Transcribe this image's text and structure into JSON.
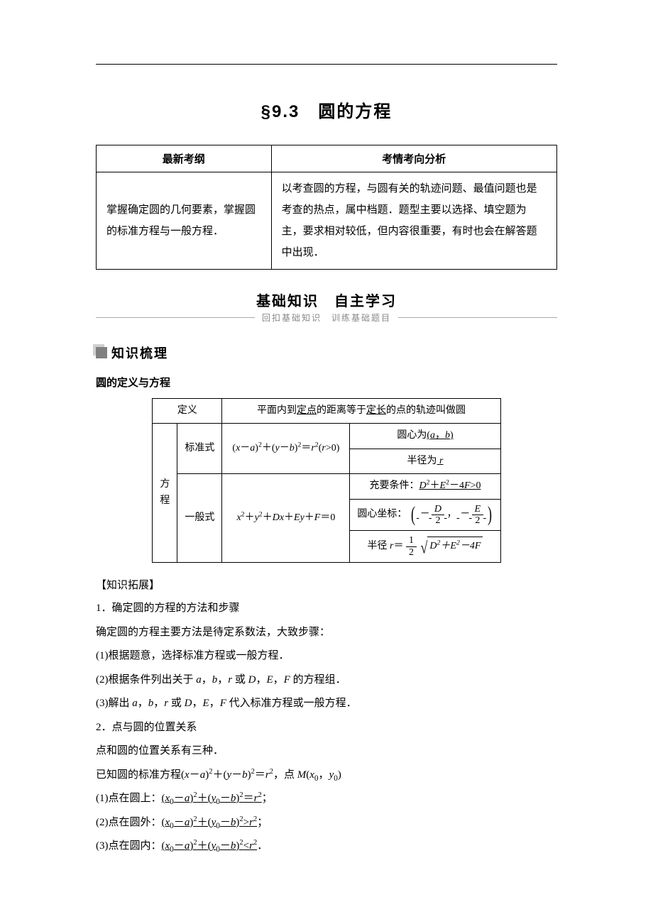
{
  "title": "§9.3　圆的方程",
  "outline": {
    "head_left": "最新考纲",
    "head_right": "考情考向分析",
    "left": "掌握确定圆的几何要素，掌握圆的标准方程与一般方程．",
    "right": "以考查圆的方程，与圆有关的轨迹问题、最值问题也是考查的热点，属中档题．题型主要以选择、填空题为主，要求相对较低，但内容很重要，有时也会在解答题中出现．"
  },
  "banner": {
    "main": "基础知识　自主学习",
    "sub": "回扣基础知识　训练基础题目"
  },
  "block1_label": "知识梳理",
  "defn_caption": "圆的定义与方程",
  "def_table": {
    "r1c1": "定义",
    "r1c2": "平面内到<span class=\"ul\">定点</span>的距离等于<span class=\"ul\">定长</span>的点的轨迹叫做圆",
    "c1": "方程",
    "r2a": "标准式",
    "std_eq": "(<span class=\"it\">x</span>－<span class=\"it\">a</span>)<sup>2</sup>＋(<span class=\"it\">y</span>－<span class=\"it\">b</span>)<sup>2</sup>＝<span class=\"it\">r</span><sup>2</sup>(<span class=\"it\">r</span>&gt;0)",
    "center": "圆心为<span class=\"ul\">(<span class=\"it\">a</span>，<span class=\"it\">b</span>)</span>",
    "radius": "半径为<span class=\"ul\"> <span class=\"it\">r</span> </span>",
    "r3a": "一般式",
    "gen_eq": "<span class=\"it\">x</span><sup>2</sup>＋<span class=\"it\">y</span><sup>2</sup>＋<span class=\"it\">Dx</span>＋<span class=\"it\">Ey</span>＋<span class=\"it\">F</span>＝0",
    "cond": "充要条件：<span class=\"ul\"><span class=\"it\">D</span><sup>2</sup>＋<span class=\"it\">E</span><sup>2</sup>－4<span class=\"it\">F</span>&gt;0</span>",
    "gcenter_prefix": "圆心坐标：",
    "gcenter_D": "D",
    "gcenter_E": "E",
    "gcenter_two": "2",
    "gradius_prefix": "半径 <span class=\"it\">r</span>＝",
    "gradius_one": "1",
    "gradius_two": "2",
    "gradius_rad": "<span class=\"it\">D</span><sup>2</sup>＋<span class=\"it\">E</span><sup>2</sup>－4<span class=\"it\">F</span>"
  },
  "ext": {
    "head": "【知识拓展】",
    "p1": "1．确定圆的方程的方法和步骤",
    "p2": "确定圆的方程主要方法是待定系数法，大致步骤：",
    "p3": "(1)根据题意，选择标准方程或一般方程．",
    "p4": "(2)根据条件列出关于 <span class=\"it\">a</span>，<span class=\"it\">b</span>，<span class=\"it\">r</span> 或 <span class=\"it\">D</span>，<span class=\"it\">E</span>，<span class=\"it\">F</span> 的方程组．",
    "p5": "(3)解出 <span class=\"it\">a</span>，<span class=\"it\">b</span>，<span class=\"it\">r</span> 或 <span class=\"it\">D</span>，<span class=\"it\">E</span>，<span class=\"it\">F</span> 代入标准方程或一般方程．",
    "p6": "2．点与圆的位置关系",
    "p7": "点和圆的位置关系有三种．",
    "p8": "已知圆的标准方程(<span class=\"it\">x</span>－<span class=\"it\">a</span>)<sup>2</sup>＋(<span class=\"it\">y</span>－<span class=\"it\">b</span>)<sup>2</sup>＝<span class=\"it\">r</span><sup>2</sup>，点 <span class=\"it\">M</span>(<span class=\"it\">x</span><sub>0</sub>，<span class=\"it\">y</span><sub>0</sub>)",
    "p9": "(1)点在圆上：<span class=\"ul\">(<span class=\"it\">x</span><sub>0</sub>－<span class=\"it\">a</span>)<sup>2</sup>＋(<span class=\"it\">y</span><sub>0</sub>－<span class=\"it\">b</span>)<sup>2</sup>＝<span class=\"it\">r</span><sup>2</sup></span>；",
    "p10": "(2)点在圆外：<span class=\"ul\">(<span class=\"it\">x</span><sub>0</sub>－<span class=\"it\">a</span>)<sup>2</sup>＋(<span class=\"it\">y</span><sub>0</sub>－<span class=\"it\">b</span>)<sup>2</sup>&gt;<span class=\"it\">r</span><sup>2</sup></span>；",
    "p11": "(3)点在圆内：<span class=\"ul\">(<span class=\"it\">x</span><sub>0</sub>－<span class=\"it\">a</span>)<sup>2</sup>＋(<span class=\"it\">y</span><sub>0</sub>－<span class=\"it\">b</span>)<sup>2</sup>&lt;<span class=\"it\">r</span><sup>2</sup></span>．"
  },
  "colors": {
    "text": "#000000",
    "bg": "#ffffff",
    "sub_gray": "#888888",
    "rule_gray": "#aaaaaa"
  }
}
